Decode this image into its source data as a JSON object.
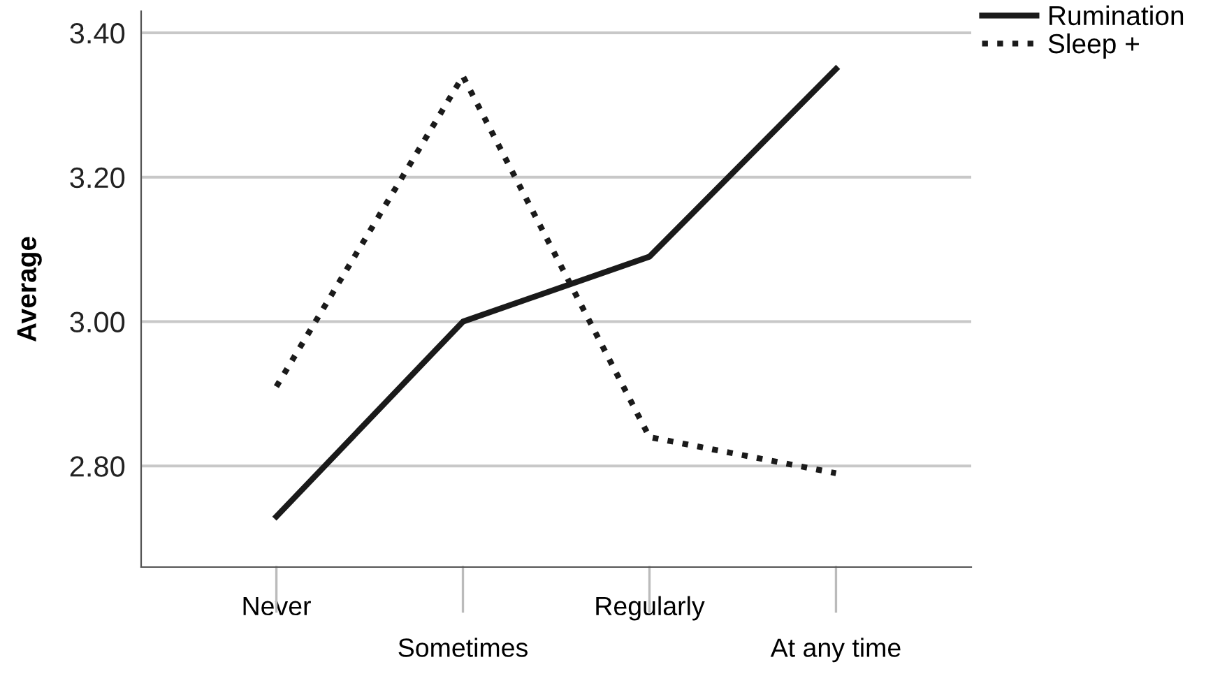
{
  "chart_data": {
    "type": "line",
    "ylabel": "Average",
    "categories": [
      "Never",
      "Sometimes",
      "Regularly",
      "At any time"
    ],
    "series": [
      {
        "name": "Rumination",
        "color": "#1a1a1a",
        "line_style": "solid",
        "values": [
          2.73,
          3.0,
          3.09,
          3.35
        ]
      },
      {
        "name": "Sleep +",
        "color": "#1a1a1a",
        "line_style": "dotted",
        "values": [
          2.91,
          3.34,
          2.84,
          2.79
        ]
      }
    ],
    "ylim": [
      2.66,
      3.43
    ],
    "yticks": [
      {
        "value": 2.8,
        "label": "2.80"
      },
      {
        "value": 3.0,
        "label": "3.00"
      },
      {
        "value": 3.2,
        "label": "3.20"
      },
      {
        "value": 3.4,
        "label": "3.40"
      }
    ],
    "grid": "y",
    "legend": "top right",
    "marker": "none"
  }
}
